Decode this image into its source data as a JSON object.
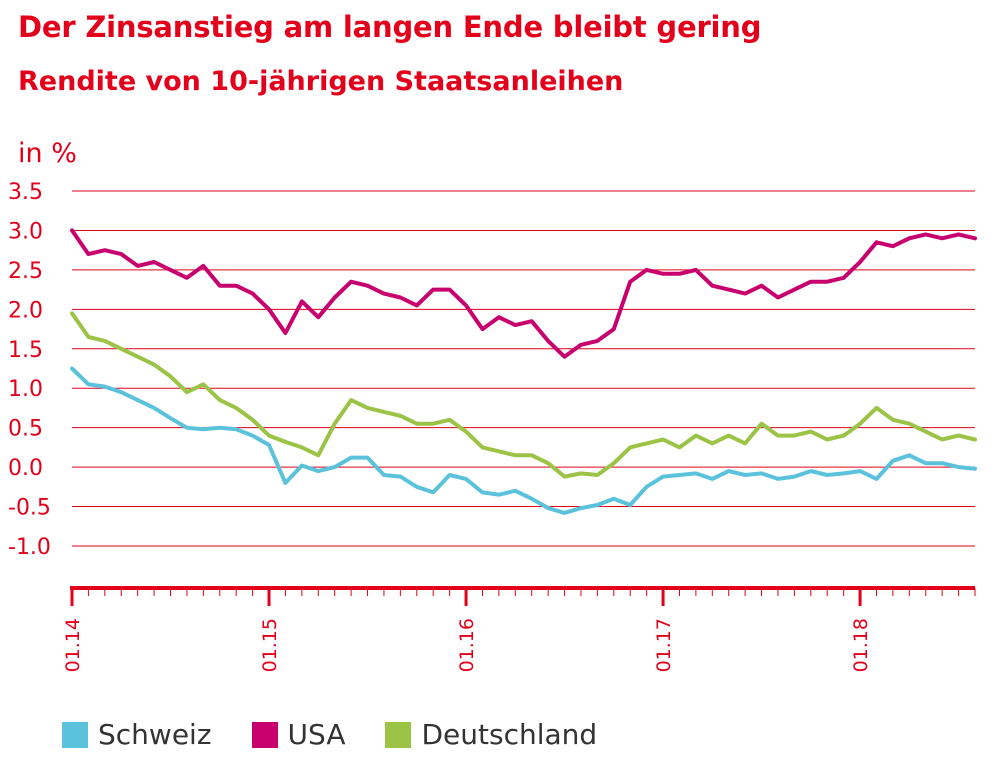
{
  "chart_data": {
    "type": "line",
    "title": "Der Zinsanstieg am langen Ende bleibt gering",
    "subtitle": "Rendite von 10-jährigen Staatsanleihen",
    "ylabel": "in %",
    "ylim": [
      -1.0,
      3.5
    ],
    "yticks": [
      "3.5",
      "3.0",
      "2.5",
      "2.0",
      "1.5",
      "1.0",
      "0.5",
      "0.0",
      "-0.5",
      "-1.0"
    ],
    "xlim": [
      "2014-01",
      "2018-08"
    ],
    "xticks": [
      "01.14",
      "01.15",
      "01.16",
      "01.17",
      "01.18"
    ],
    "grid": true,
    "legend": "bottom",
    "series": [
      {
        "name": "Schweiz",
        "color": "#5bc2dc",
        "points": [
          [
            "2014-01",
            1.25
          ],
          [
            "2014-02",
            1.05
          ],
          [
            "2014-03",
            1.02
          ],
          [
            "2014-04",
            0.95
          ],
          [
            "2014-05",
            0.85
          ],
          [
            "2014-06",
            0.75
          ],
          [
            "2014-07",
            0.62
          ],
          [
            "2014-08",
            0.5
          ],
          [
            "2014-09",
            0.48
          ],
          [
            "2014-10",
            0.5
          ],
          [
            "2014-11",
            0.48
          ],
          [
            "2014-12",
            0.4
          ],
          [
            "2015-01",
            0.28
          ],
          [
            "2015-02",
            -0.2
          ],
          [
            "2015-03",
            0.02
          ],
          [
            "2015-04",
            -0.05
          ],
          [
            "2015-05",
            0.0
          ],
          [
            "2015-06",
            0.12
          ],
          [
            "2015-07",
            0.12
          ],
          [
            "2015-08",
            -0.1
          ],
          [
            "2015-09",
            -0.12
          ],
          [
            "2015-10",
            -0.25
          ],
          [
            "2015-11",
            -0.32
          ],
          [
            "2015-12",
            -0.1
          ],
          [
            "2016-01",
            -0.15
          ],
          [
            "2016-02",
            -0.32
          ],
          [
            "2016-03",
            -0.35
          ],
          [
            "2016-04",
            -0.3
          ],
          [
            "2016-05",
            -0.4
          ],
          [
            "2016-06",
            -0.52
          ],
          [
            "2016-07",
            -0.58
          ],
          [
            "2016-08",
            -0.52
          ],
          [
            "2016-09",
            -0.48
          ],
          [
            "2016-10",
            -0.4
          ],
          [
            "2016-11",
            -0.48
          ],
          [
            "2016-12",
            -0.25
          ],
          [
            "2017-01",
            -0.12
          ],
          [
            "2017-02",
            -0.1
          ],
          [
            "2017-03",
            -0.08
          ],
          [
            "2017-04",
            -0.15
          ],
          [
            "2017-05",
            -0.05
          ],
          [
            "2017-06",
            -0.1
          ],
          [
            "2017-07",
            -0.08
          ],
          [
            "2017-08",
            -0.15
          ],
          [
            "2017-09",
            -0.12
          ],
          [
            "2017-10",
            -0.05
          ],
          [
            "2017-11",
            -0.1
          ],
          [
            "2017-12",
            -0.08
          ],
          [
            "2018-01",
            -0.05
          ],
          [
            "2018-02",
            -0.15
          ],
          [
            "2018-03",
            0.08
          ],
          [
            "2018-04",
            0.15
          ],
          [
            "2018-05",
            0.05
          ],
          [
            "2018-06",
            0.05
          ],
          [
            "2018-07",
            0.0
          ],
          [
            "2018-08",
            -0.02
          ]
        ]
      },
      {
        "name": "USA",
        "color": "#c8006e",
        "points": [
          [
            "2014-01",
            3.0
          ],
          [
            "2014-02",
            2.7
          ],
          [
            "2014-03",
            2.75
          ],
          [
            "2014-04",
            2.7
          ],
          [
            "2014-05",
            2.55
          ],
          [
            "2014-06",
            2.6
          ],
          [
            "2014-07",
            2.5
          ],
          [
            "2014-08",
            2.4
          ],
          [
            "2014-09",
            2.55
          ],
          [
            "2014-10",
            2.3
          ],
          [
            "2014-11",
            2.3
          ],
          [
            "2014-12",
            2.2
          ],
          [
            "2015-01",
            2.0
          ],
          [
            "2015-02",
            1.7
          ],
          [
            "2015-03",
            2.1
          ],
          [
            "2015-04",
            1.9
          ],
          [
            "2015-05",
            2.15
          ],
          [
            "2015-06",
            2.35
          ],
          [
            "2015-07",
            2.3
          ],
          [
            "2015-08",
            2.2
          ],
          [
            "2015-09",
            2.15
          ],
          [
            "2015-10",
            2.05
          ],
          [
            "2015-11",
            2.25
          ],
          [
            "2015-12",
            2.25
          ],
          [
            "2016-01",
            2.05
          ],
          [
            "2016-02",
            1.75
          ],
          [
            "2016-03",
            1.9
          ],
          [
            "2016-04",
            1.8
          ],
          [
            "2016-05",
            1.85
          ],
          [
            "2016-06",
            1.6
          ],
          [
            "2016-07",
            1.4
          ],
          [
            "2016-08",
            1.55
          ],
          [
            "2016-09",
            1.6
          ],
          [
            "2016-10",
            1.75
          ],
          [
            "2016-11",
            2.35
          ],
          [
            "2016-12",
            2.5
          ],
          [
            "2017-01",
            2.45
          ],
          [
            "2017-02",
            2.45
          ],
          [
            "2017-03",
            2.5
          ],
          [
            "2017-04",
            2.3
          ],
          [
            "2017-05",
            2.25
          ],
          [
            "2017-06",
            2.2
          ],
          [
            "2017-07",
            2.3
          ],
          [
            "2017-08",
            2.15
          ],
          [
            "2017-09",
            2.25
          ],
          [
            "2017-10",
            2.35
          ],
          [
            "2017-11",
            2.35
          ],
          [
            "2017-12",
            2.4
          ],
          [
            "2018-01",
            2.6
          ],
          [
            "2018-02",
            2.85
          ],
          [
            "2018-03",
            2.8
          ],
          [
            "2018-04",
            2.9
          ],
          [
            "2018-05",
            2.95
          ],
          [
            "2018-06",
            2.9
          ],
          [
            "2018-07",
            2.95
          ],
          [
            "2018-08",
            2.9
          ]
        ]
      },
      {
        "name": "Deutschland",
        "color": "#9bc346",
        "points": [
          [
            "2014-01",
            1.95
          ],
          [
            "2014-02",
            1.65
          ],
          [
            "2014-03",
            1.6
          ],
          [
            "2014-04",
            1.5
          ],
          [
            "2014-05",
            1.4
          ],
          [
            "2014-06",
            1.3
          ],
          [
            "2014-07",
            1.15
          ],
          [
            "2014-08",
            0.95
          ],
          [
            "2014-09",
            1.05
          ],
          [
            "2014-10",
            0.85
          ],
          [
            "2014-11",
            0.75
          ],
          [
            "2014-12",
            0.6
          ],
          [
            "2015-01",
            0.4
          ],
          [
            "2015-02",
            0.32
          ],
          [
            "2015-03",
            0.25
          ],
          [
            "2015-04",
            0.15
          ],
          [
            "2015-05",
            0.55
          ],
          [
            "2015-06",
            0.85
          ],
          [
            "2015-07",
            0.75
          ],
          [
            "2015-08",
            0.7
          ],
          [
            "2015-09",
            0.65
          ],
          [
            "2015-10",
            0.55
          ],
          [
            "2015-11",
            0.55
          ],
          [
            "2015-12",
            0.6
          ],
          [
            "2016-01",
            0.45
          ],
          [
            "2016-02",
            0.25
          ],
          [
            "2016-03",
            0.2
          ],
          [
            "2016-04",
            0.15
          ],
          [
            "2016-05",
            0.15
          ],
          [
            "2016-06",
            0.05
          ],
          [
            "2016-07",
            -0.12
          ],
          [
            "2016-08",
            -0.08
          ],
          [
            "2016-09",
            -0.1
          ],
          [
            "2016-10",
            0.05
          ],
          [
            "2016-11",
            0.25
          ],
          [
            "2016-12",
            0.3
          ],
          [
            "2017-01",
            0.35
          ],
          [
            "2017-02",
            0.25
          ],
          [
            "2017-03",
            0.4
          ],
          [
            "2017-04",
            0.3
          ],
          [
            "2017-05",
            0.4
          ],
          [
            "2017-06",
            0.3
          ],
          [
            "2017-07",
            0.55
          ],
          [
            "2017-08",
            0.4
          ],
          [
            "2017-09",
            0.4
          ],
          [
            "2017-10",
            0.45
          ],
          [
            "2017-11",
            0.35
          ],
          [
            "2017-12",
            0.4
          ],
          [
            "2018-01",
            0.55
          ],
          [
            "2018-02",
            0.75
          ],
          [
            "2018-03",
            0.6
          ],
          [
            "2018-04",
            0.55
          ],
          [
            "2018-05",
            0.45
          ],
          [
            "2018-06",
            0.35
          ],
          [
            "2018-07",
            0.4
          ],
          [
            "2018-08",
            0.35
          ]
        ]
      }
    ]
  }
}
